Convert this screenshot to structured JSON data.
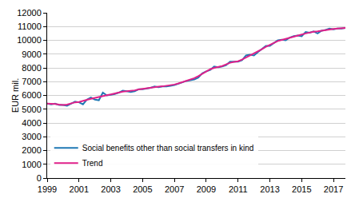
{
  "chart_data": {
    "type": "line",
    "y_label": "EUR mil.",
    "x": [
      1999,
      1999.25,
      1999.5,
      1999.75,
      2000,
      2000.25,
      2000.5,
      2000.75,
      2001,
      2001.25,
      2001.5,
      2001.75,
      2002,
      2002.25,
      2002.5,
      2002.75,
      2003,
      2003.25,
      2003.5,
      2003.75,
      2004,
      2004.25,
      2004.5,
      2004.75,
      2005,
      2005.25,
      2005.5,
      2005.75,
      2006,
      2006.25,
      2006.5,
      2006.75,
      2007,
      2007.25,
      2007.5,
      2007.75,
      2008,
      2008.25,
      2008.5,
      2008.75,
      2009,
      2009.25,
      2009.5,
      2009.75,
      2010,
      2010.25,
      2010.5,
      2010.75,
      2011,
      2011.25,
      2011.5,
      2011.75,
      2012,
      2012.25,
      2012.5,
      2012.75,
      2013,
      2013.25,
      2013.5,
      2013.75,
      2014,
      2014.25,
      2014.5,
      2014.75,
      2015,
      2015.25,
      2015.5,
      2015.75,
      2016,
      2016.25,
      2016.5,
      2016.75,
      2017,
      2017.25,
      2017.5,
      2017.75
    ],
    "series": [
      {
        "name": "Social benefits other than social transfers in kind",
        "color": "#1f78b4",
        "values": [
          5400,
          5350,
          5400,
          5300,
          5300,
          5250,
          5400,
          5550,
          5500,
          5350,
          5700,
          5850,
          5700,
          5650,
          6200,
          6000,
          6050,
          6100,
          6200,
          6350,
          6300,
          6250,
          6300,
          6450,
          6450,
          6500,
          6550,
          6650,
          6600,
          6650,
          6650,
          6700,
          6750,
          6850,
          6950,
          7050,
          7100,
          7150,
          7300,
          7600,
          7750,
          7850,
          8100,
          8050,
          8100,
          8200,
          8450,
          8450,
          8450,
          8550,
          8900,
          8950,
          8900,
          9150,
          9400,
          9600,
          9600,
          9800,
          10000,
          10050,
          10000,
          10200,
          10300,
          10350,
          10300,
          10600,
          10550,
          10650,
          10500,
          10700,
          10750,
          10850,
          10800,
          10850,
          10850,
          10900
        ]
      },
      {
        "name": "Trend",
        "color": "#e0218a",
        "values": [
          5400,
          5400,
          5380,
          5330,
          5300,
          5330,
          5420,
          5500,
          5520,
          5580,
          5680,
          5750,
          5820,
          5900,
          5980,
          6020,
          6070,
          6150,
          6230,
          6280,
          6300,
          6320,
          6370,
          6430,
          6480,
          6520,
          6570,
          6610,
          6640,
          6660,
          6690,
          6730,
          6790,
          6870,
          6960,
          7060,
          7140,
          7250,
          7400,
          7580,
          7760,
          7900,
          8000,
          8060,
          8130,
          8250,
          8370,
          8430,
          8480,
          8600,
          8750,
          8900,
          9020,
          9180,
          9360,
          9530,
          9680,
          9830,
          9950,
          10030,
          10100,
          10180,
          10270,
          10340,
          10420,
          10500,
          10570,
          10620,
          10650,
          10700,
          10760,
          10800,
          10830,
          10860,
          10880,
          10900
        ]
      }
    ],
    "xlim": [
      1999,
      2017.75
    ],
    "xticks": [
      1999,
      2001,
      2003,
      2005,
      2007,
      2009,
      2011,
      2013,
      2015,
      2017
    ],
    "ylim": [
      0,
      12000
    ],
    "yticks": [
      0,
      1000,
      2000,
      3000,
      4000,
      5000,
      6000,
      7000,
      8000,
      9000,
      10000,
      11000,
      12000
    ],
    "grid": true,
    "legend": "bottom left"
  }
}
